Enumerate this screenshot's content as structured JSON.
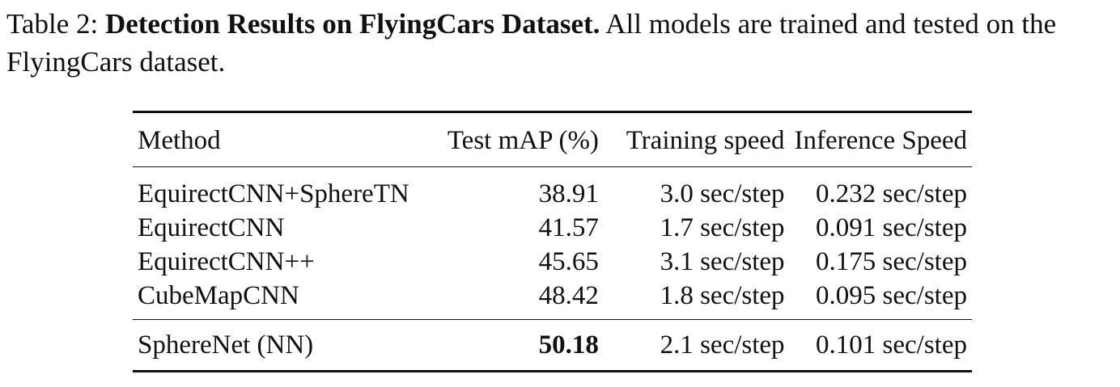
{
  "caption": {
    "label": "Table 2:",
    "title": "Detection Results on FlyingCars Dataset.",
    "text": "All models are trained and tested on the FlyingCars dataset."
  },
  "table": {
    "headers": [
      "Method",
      "Test mAP (%)",
      "Training speed",
      "Inference Speed"
    ],
    "rows": [
      {
        "method": "EquirectCNN+SphereTN",
        "map": "38.91",
        "train": "3.0 sec/step",
        "inf": "0.232 sec/step"
      },
      {
        "method": "EquirectCNN",
        "map": "41.57",
        "train": "1.7 sec/step",
        "inf": "0.091 sec/step"
      },
      {
        "method": "EquirectCNN++",
        "map": "45.65",
        "train": "3.1 sec/step",
        "inf": "0.175 sec/step"
      },
      {
        "method": "CubeMapCNN",
        "map": "48.42",
        "train": "1.8 sec/step",
        "inf": "0.095 sec/step"
      }
    ],
    "final_row": {
      "method": "SphereNet (NN)",
      "map": "50.18",
      "train": "2.1 sec/step",
      "inf": "0.101 sec/step"
    }
  }
}
